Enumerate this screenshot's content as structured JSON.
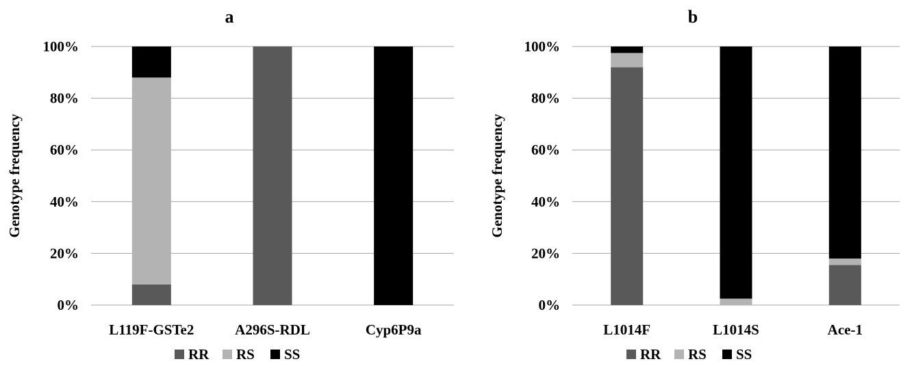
{
  "chart_data": [
    {
      "type": "bar",
      "stacked": true,
      "title": "a",
      "ylabel": "Genotype frequency",
      "ylim": [
        0,
        100
      ],
      "yticks": [
        "0%",
        "20%",
        "40%",
        "60%",
        "80%",
        "100%"
      ],
      "categories": [
        "L119F-GSTe2",
        "A296S-RDL",
        "Cyp6P9a"
      ],
      "series": [
        {
          "name": "RR",
          "color": "#595959",
          "values": [
            8,
            100,
            0
          ]
        },
        {
          "name": "RS",
          "color": "#b3b3b3",
          "values": [
            80,
            0,
            0
          ]
        },
        {
          "name": "SS",
          "color": "#000000",
          "values": [
            12,
            0,
            100
          ]
        }
      ],
      "legend": "bottom",
      "grid": true
    },
    {
      "type": "bar",
      "stacked": true,
      "title": "b",
      "ylabel": "Genotype frequency",
      "ylim": [
        0,
        100
      ],
      "yticks": [
        "0%",
        "20%",
        "40%",
        "60%",
        "80%",
        "100%"
      ],
      "categories": [
        "L1014F",
        "L1014S",
        "Ace-1"
      ],
      "series": [
        {
          "name": "RR",
          "color": "#595959",
          "values": [
            92,
            0,
            15.5
          ]
        },
        {
          "name": "RS",
          "color": "#b3b3b3",
          "values": [
            5.5,
            2.5,
            2.5
          ]
        },
        {
          "name": "SS",
          "color": "#000000",
          "values": [
            2.5,
            97.5,
            82
          ]
        }
      ],
      "legend": "bottom",
      "grid": true
    }
  ]
}
